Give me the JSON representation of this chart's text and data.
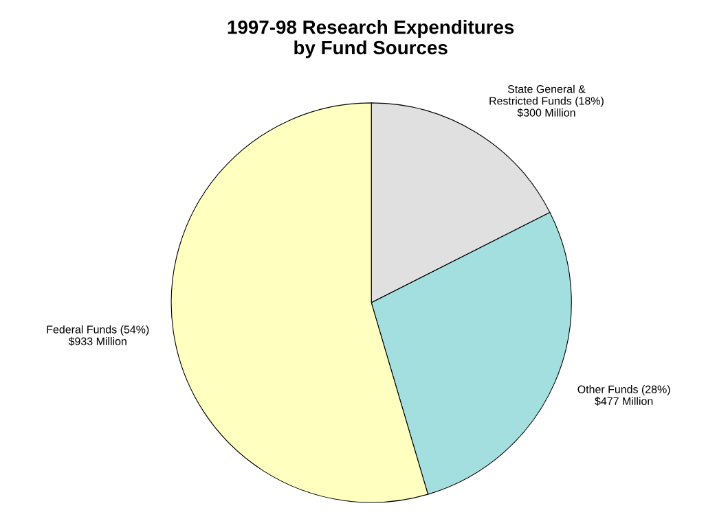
{
  "chart_data": {
    "type": "pie",
    "title": "1997-98 Research Expenditures\nby Fund Sources",
    "categories": [
      "State General &\nRestricted Funds (18%)\n$300 Million",
      "Other Funds (28%)\n$477 Million",
      "Federal Funds (54%)\n$933 Million"
    ],
    "values": [
      300,
      477,
      933
    ],
    "colors": [
      "#e0e0e0",
      "#a4dfe0",
      "#ffffc0"
    ]
  }
}
